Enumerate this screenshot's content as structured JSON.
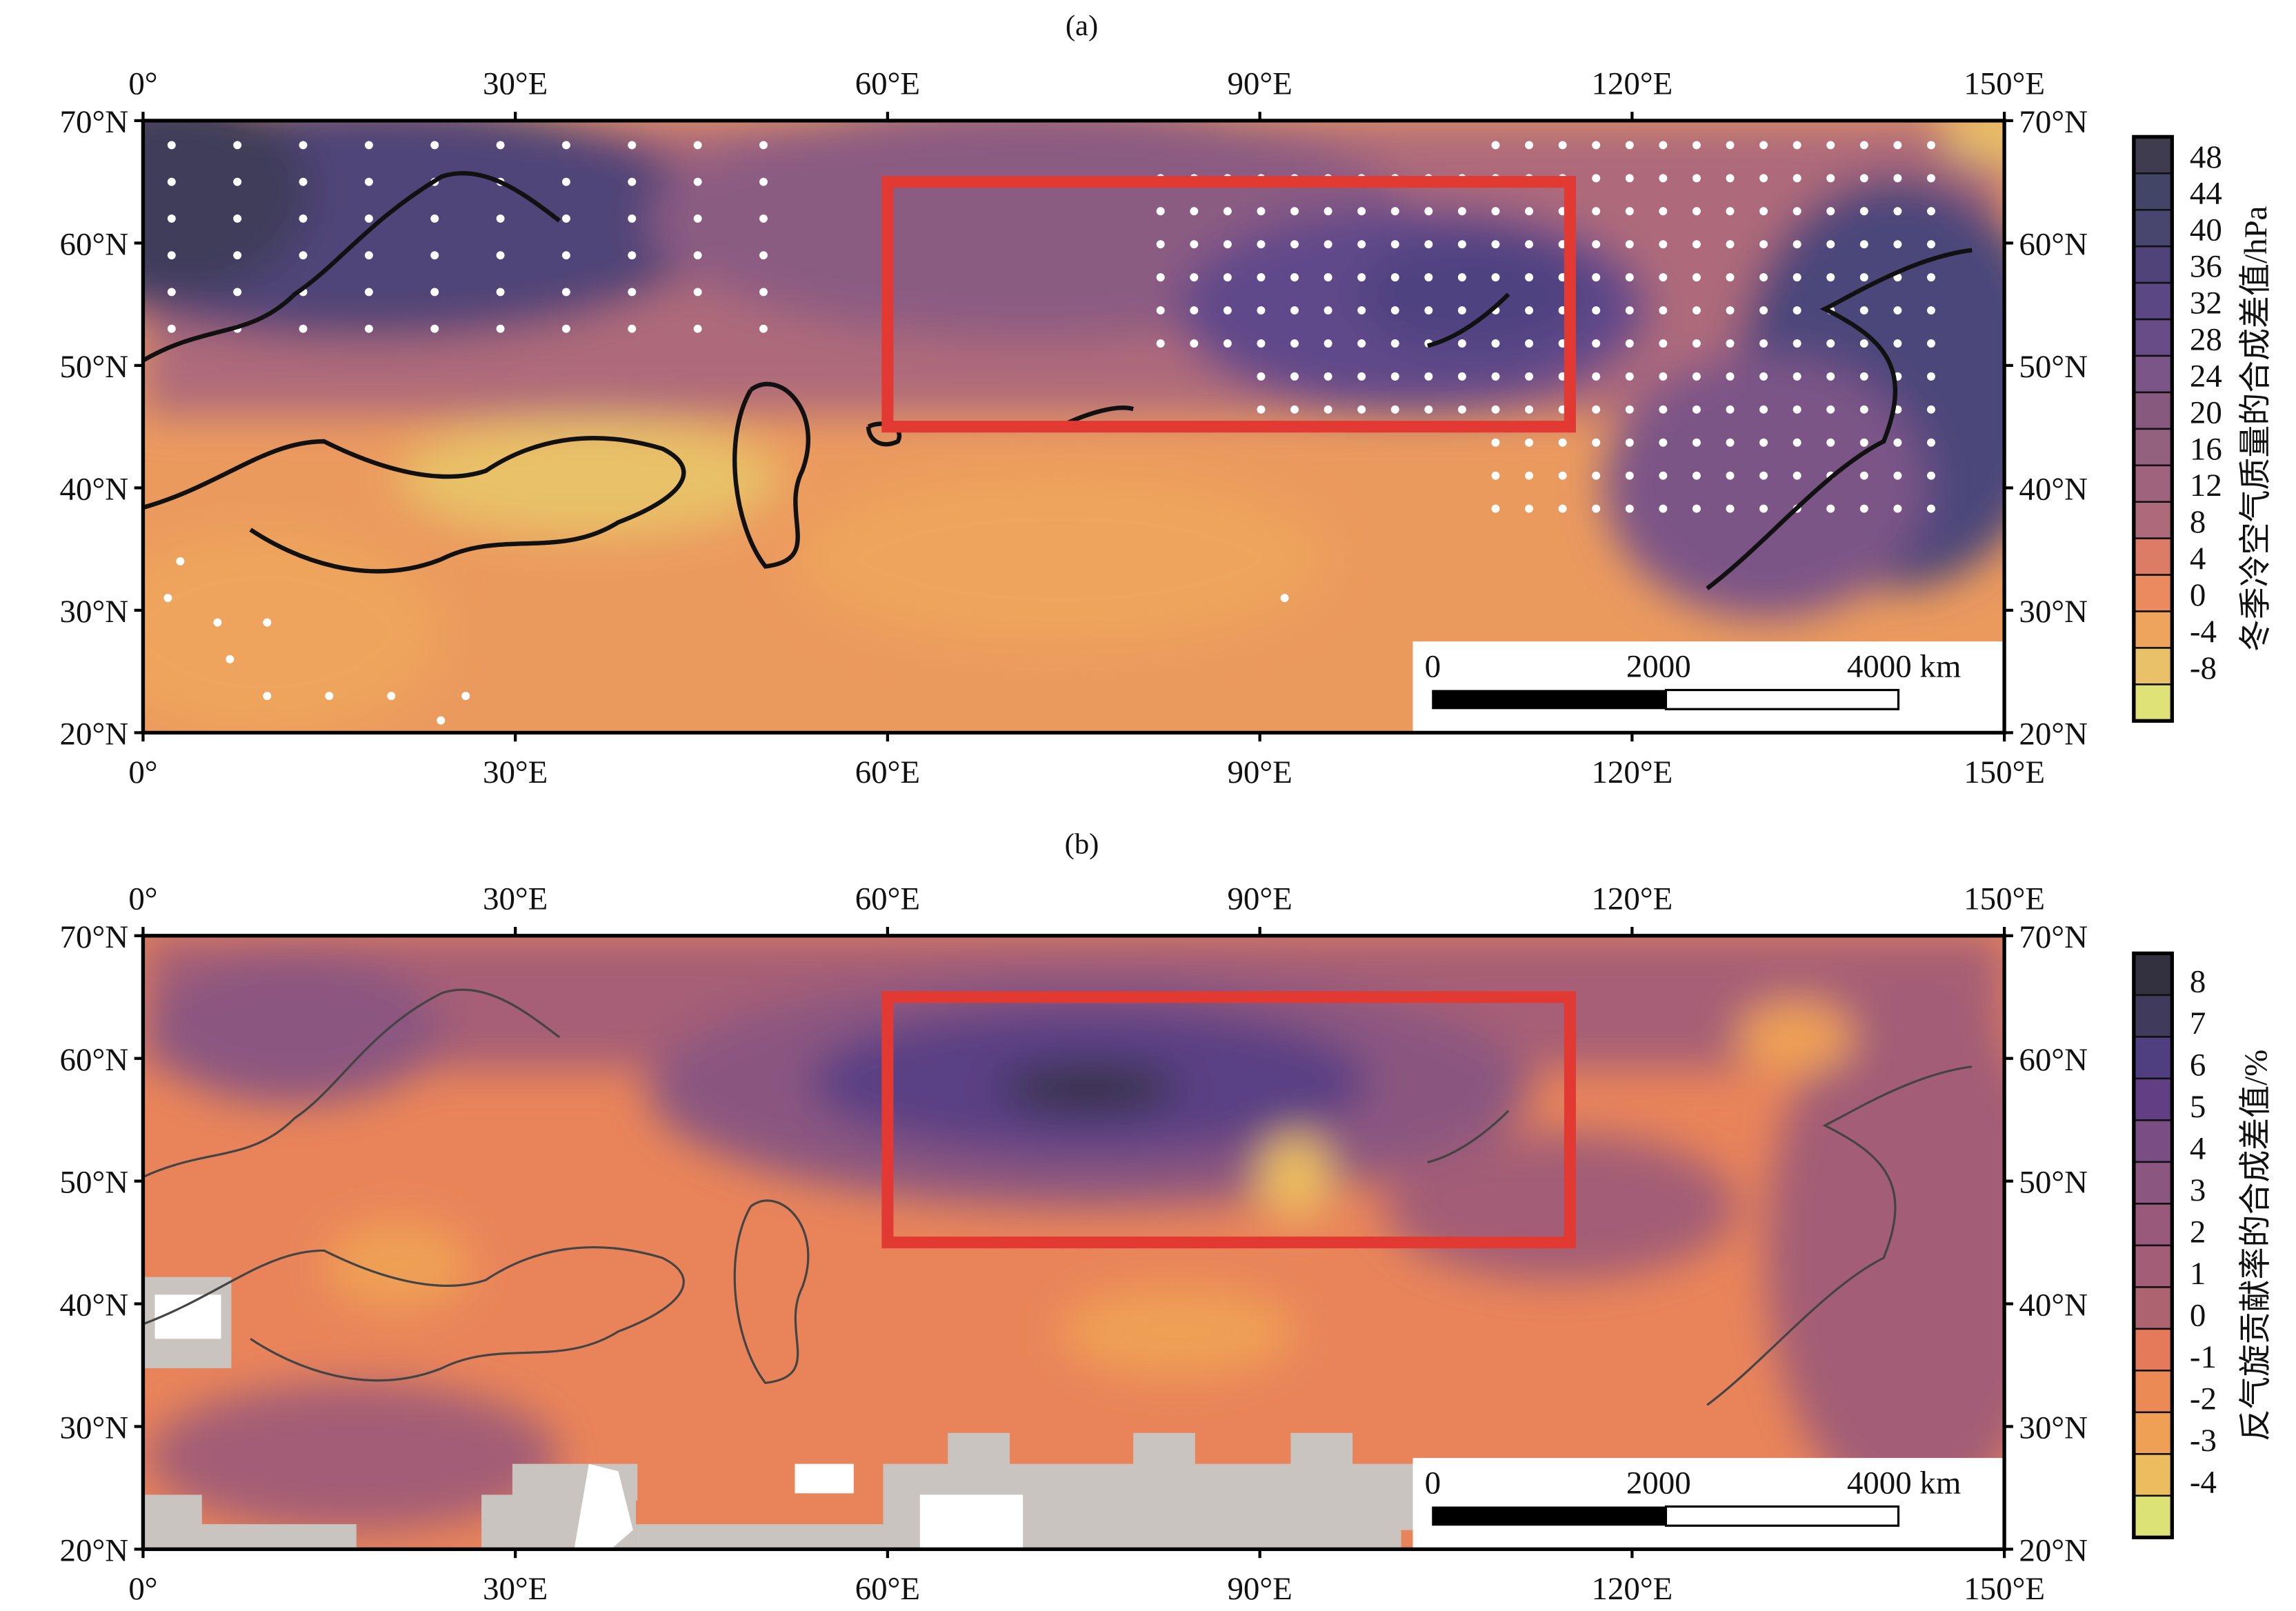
{
  "chart_data": [
    {
      "type": "heatmap",
      "panel_label": "(a)",
      "x_ticks": [
        "0°",
        "30°E",
        "60°E",
        "90°E",
        "120°E",
        "150°E"
      ],
      "x_tick_values": [
        0,
        30,
        60,
        90,
        120,
        150
      ],
      "y_ticks": [
        "70°N",
        "60°N",
        "50°N",
        "40°N",
        "30°N",
        "20°N"
      ],
      "y_tick_values": [
        70,
        60,
        50,
        40,
        30,
        20
      ],
      "xlim": [
        0,
        150
      ],
      "ylim": [
        20,
        70
      ],
      "colorbar_label": "冬季冷空气质量的合成差值/hPa",
      "colorbar_levels": [
        "48",
        "44",
        "40",
        "36",
        "32",
        "28",
        "24",
        "20",
        "16",
        "12",
        "8",
        "4",
        "0",
        "-4",
        "-8"
      ],
      "colorbar_colors": [
        "#3e3c4e",
        "#424566",
        "#48456e",
        "#4f437a",
        "#5a4784",
        "#684c88",
        "#7b5587",
        "#88597f",
        "#93607e",
        "#a0637d",
        "#ad6a7a",
        "#dc7c66",
        "#ea8a5e",
        "#eea45c",
        "#e8c168",
        "#dfe277"
      ],
      "region_box": {
        "lon": [
          60,
          115
        ],
        "lat": [
          45,
          65
        ],
        "color": "#e23a32"
      },
      "scale_bar": {
        "labels": [
          "0",
          "2000",
          "4000 km"
        ]
      }
    },
    {
      "type": "heatmap",
      "panel_label": "(b)",
      "x_ticks": [
        "0°",
        "30°E",
        "60°E",
        "90°E",
        "120°E",
        "150°E"
      ],
      "x_tick_values": [
        0,
        30,
        60,
        90,
        120,
        150
      ],
      "y_ticks": [
        "70°N",
        "60°N",
        "50°N",
        "40°N",
        "30°N",
        "20°N"
      ],
      "y_tick_values": [
        70,
        60,
        50,
        40,
        30,
        20
      ],
      "xlim": [
        0,
        150
      ],
      "ylim": [
        20,
        70
      ],
      "colorbar_label": "反气旋贡献率的合成差值/%",
      "colorbar_levels": [
        "8",
        "7",
        "6",
        "5",
        "4",
        "3",
        "2",
        "1",
        "0",
        "-1",
        "-2",
        "-3",
        "-4"
      ],
      "colorbar_colors": [
        "#33303f",
        "#403a5c",
        "#4f3f80",
        "#623f84",
        "#7a4e84",
        "#8b5680",
        "#98597b",
        "#a35d76",
        "#ad6470",
        "#e47a5a",
        "#ec8a56",
        "#efa055",
        "#ebbd5f",
        "#dde277"
      ],
      "region_box": {
        "lon": [
          60,
          115
        ],
        "lat": [
          45,
          65
        ],
        "color": "#e23a32"
      },
      "scale_bar": {
        "labels": [
          "0",
          "2000",
          "4000 km"
        ]
      }
    }
  ]
}
